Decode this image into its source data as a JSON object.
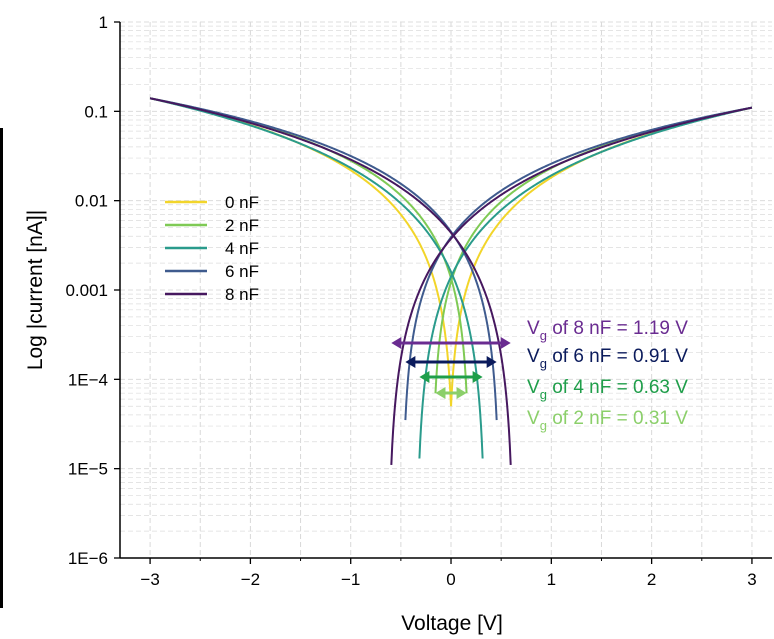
{
  "chart_data": {
    "type": "line",
    "title": "",
    "xlabel": "Voltage [V]",
    "ylabel": "Log |current [nA]|",
    "x_ticks": [
      "−3",
      "−2",
      "−1",
      "0",
      "1",
      "2",
      "3"
    ],
    "y_ticks": [
      "1E−6",
      "1E−5",
      "1E−4",
      "0.001",
      "0.01",
      "0.1",
      "1"
    ],
    "xlim": [
      -3.3,
      3.2
    ],
    "ylim": [
      1e-06,
      1
    ],
    "y_scale": "log",
    "grid": true,
    "legend_position": "left-middle",
    "series": [
      {
        "name": "0 nF",
        "color": "#f2d52a",
        "vg": 0.0,
        "min_current": 5e-05
      },
      {
        "name": "2 nF",
        "color": "#7fca55",
        "vg": 0.31,
        "min_current": 7e-05
      },
      {
        "name": "4 nF",
        "color": "#2a9b8c",
        "vg": 0.63,
        "min_current": 1.3e-05
      },
      {
        "name": "6 nF",
        "color": "#3f5b8e",
        "vg": 0.91,
        "min_current": 3.5e-05
      },
      {
        "name": "8 nF",
        "color": "#46185f",
        "vg": 1.19,
        "min_current": 1.1e-05
      }
    ],
    "endpoints": {
      "left_current": 0.14,
      "right_current": 0.11
    },
    "annotations": [
      {
        "prefix": "V",
        "sub": "g",
        "text": " of 8 nF = 1.19 V",
        "color": "#6a2c91",
        "vg": 1.19
      },
      {
        "prefix": "V",
        "sub": "g",
        "text": " of 6 nF = 0.91 V",
        "color": "#0b1b5c",
        "vg": 0.91
      },
      {
        "prefix": "V",
        "sub": "g",
        "text": " of 4 nF = 0.63 V",
        "color": "#1f9e4a",
        "vg": 0.63
      },
      {
        "prefix": "V",
        "sub": "g",
        "text": " of 2 nF = 0.31 V",
        "color": "#8bcf6a",
        "vg": 0.31
      }
    ]
  }
}
